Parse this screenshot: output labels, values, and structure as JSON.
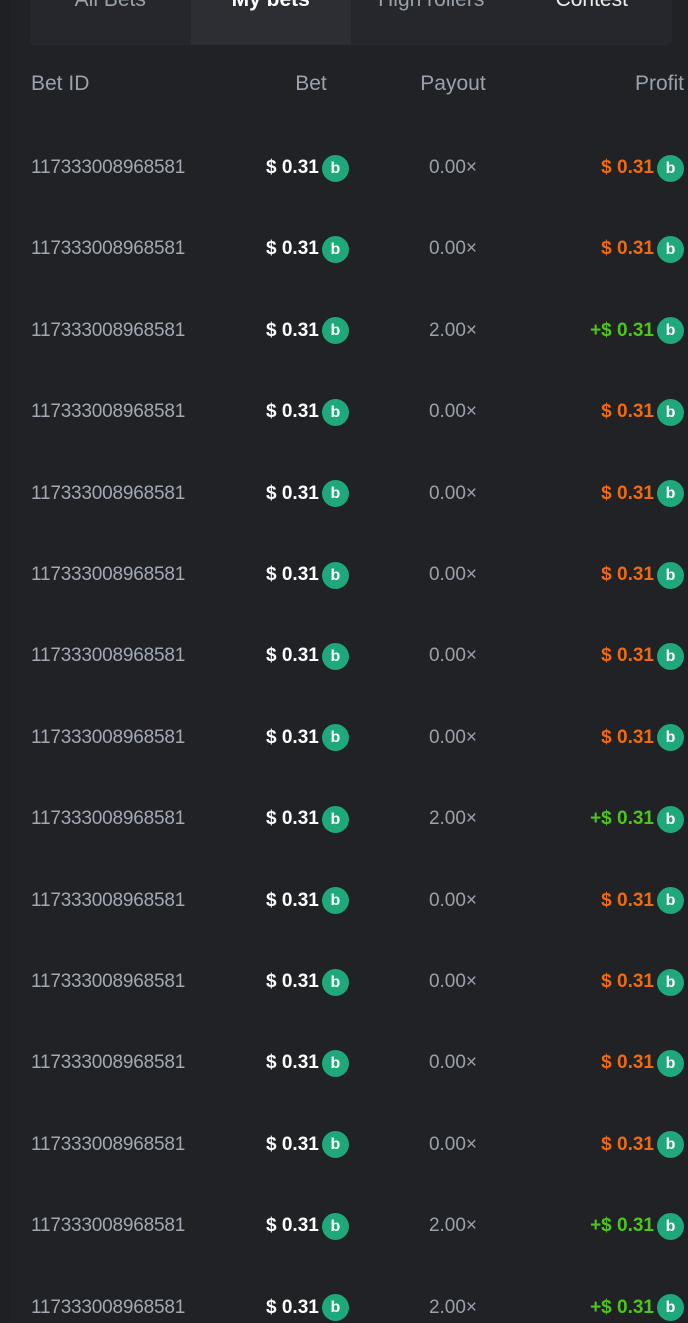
{
  "tabs": [
    {
      "label": "All Bets"
    },
    {
      "label": "My bets",
      "active": true
    },
    {
      "label": "High rollers"
    },
    {
      "label": "Contest"
    }
  ],
  "headers": {
    "bet_id": "Bet ID",
    "bet": "Bet",
    "payout": "Payout",
    "profit": "Profit"
  },
  "colors": {
    "loss": "#f06a0f",
    "win": "#4ec51a",
    "coin": "#1fa87a"
  },
  "coin_icon": "bc-coin-icon",
  "rows": [
    {
      "id": "117333008968581",
      "bet": "$ 0.31",
      "payout": "0.00×",
      "profit": "$ 0.31",
      "win": false
    },
    {
      "id": "117333008968581",
      "bet": "$ 0.31",
      "payout": "0.00×",
      "profit": "$ 0.31",
      "win": false
    },
    {
      "id": "117333008968581",
      "bet": "$ 0.31",
      "payout": "2.00×",
      "profit": "+$ 0.31",
      "win": true
    },
    {
      "id": "117333008968581",
      "bet": "$ 0.31",
      "payout": "0.00×",
      "profit": "$ 0.31",
      "win": false
    },
    {
      "id": "117333008968581",
      "bet": "$ 0.31",
      "payout": "0.00×",
      "profit": "$ 0.31",
      "win": false
    },
    {
      "id": "117333008968581",
      "bet": "$ 0.31",
      "payout": "0.00×",
      "profit": "$ 0.31",
      "win": false
    },
    {
      "id": "117333008968581",
      "bet": "$ 0.31",
      "payout": "0.00×",
      "profit": "$ 0.31",
      "win": false
    },
    {
      "id": "117333008968581",
      "bet": "$ 0.31",
      "payout": "0.00×",
      "profit": "$ 0.31",
      "win": false
    },
    {
      "id": "117333008968581",
      "bet": "$ 0.31",
      "payout": "2.00×",
      "profit": "+$ 0.31",
      "win": true
    },
    {
      "id": "117333008968581",
      "bet": "$ 0.31",
      "payout": "0.00×",
      "profit": "$ 0.31",
      "win": false
    },
    {
      "id": "117333008968581",
      "bet": "$ 0.31",
      "payout": "0.00×",
      "profit": "$ 0.31",
      "win": false
    },
    {
      "id": "117333008968581",
      "bet": "$ 0.31",
      "payout": "0.00×",
      "profit": "$ 0.31",
      "win": false
    },
    {
      "id": "117333008968581",
      "bet": "$ 0.31",
      "payout": "0.00×",
      "profit": "$ 0.31",
      "win": false
    },
    {
      "id": "117333008968581",
      "bet": "$ 0.31",
      "payout": "2.00×",
      "profit": "+$ 0.31",
      "win": true
    },
    {
      "id": "117333008968581",
      "bet": "$ 0.31",
      "payout": "2.00×",
      "profit": "+$ 0.31",
      "win": true
    }
  ]
}
